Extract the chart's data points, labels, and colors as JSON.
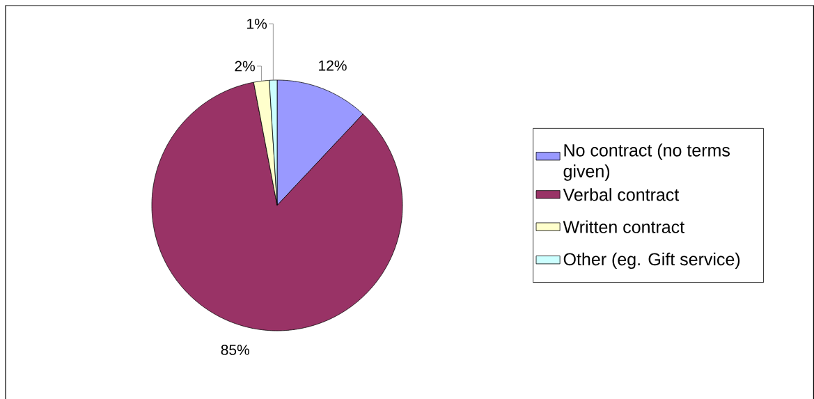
{
  "chart_data": {
    "type": "pie",
    "categories": [
      "No contract  (no terms given)",
      "Verbal contract",
      "Written contract",
      "Other  (eg. Gift service)"
    ],
    "values": [
      12,
      85,
      2,
      1
    ],
    "colors": [
      "#9999ff",
      "#993366",
      "#ffffcc",
      "#ccffff"
    ],
    "value_labels": [
      "12%",
      "85%",
      "2%",
      "1%"
    ],
    "legend": "right"
  }
}
